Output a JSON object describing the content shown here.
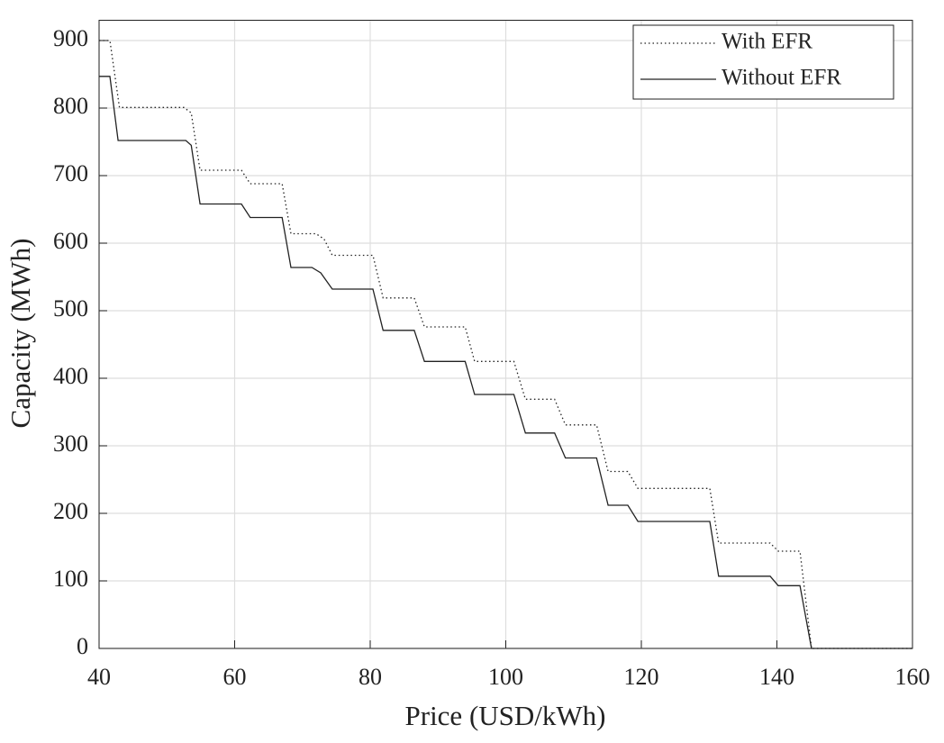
{
  "chart_data": {
    "type": "line",
    "xlabel": "Price (USD/kWh)",
    "ylabel": "Capacity (MWh)",
    "xlim": [
      40,
      160
    ],
    "ylim": [
      0,
      930
    ],
    "xticks": [
      40,
      60,
      80,
      100,
      120,
      140,
      160
    ],
    "yticks": [
      0,
      100,
      200,
      300,
      400,
      500,
      600,
      700,
      800,
      900
    ],
    "grid": true,
    "legend": "upper right",
    "series": [
      {
        "name": "With EFR",
        "color": "#222222",
        "dash": "dotted",
        "x": [
          40,
          41.6,
          43,
          52.5,
          53.6,
          54.9,
          61,
          62.3,
          67,
          68.3,
          72,
          73.2,
          74.4,
          80.4,
          81.9,
          86.5,
          88,
          94,
          95.4,
          101.2,
          102.9,
          107.2,
          108.8,
          113.4,
          115.1,
          118,
          119.5,
          130.1,
          131.4,
          139,
          140.2,
          143.4,
          145.1,
          160
        ],
        "values": [
          900,
          900,
          801,
          801,
          793,
          708,
          708,
          688,
          688,
          614,
          614,
          606,
          582,
          582,
          519,
          519,
          476,
          476,
          425,
          425,
          369,
          369,
          331,
          331,
          262,
          262,
          237,
          237,
          156,
          156,
          144,
          144,
          0,
          0
        ]
      },
      {
        "name": "Without EFR",
        "color": "#222222",
        "dash": "solid",
        "x": [
          40,
          41.6,
          42.8,
          52.8,
          53.6,
          54.9,
          61,
          62.3,
          67,
          68.3,
          71.4,
          72.7,
          74.4,
          80.4,
          81.9,
          86.5,
          88,
          94,
          95.4,
          101.2,
          102.9,
          107.2,
          108.8,
          113.4,
          115.1,
          118,
          119.5,
          130.1,
          131.4,
          139,
          140.2,
          143.4,
          145.1,
          160
        ],
        "values": [
          847,
          847,
          752,
          752,
          745,
          658,
          658,
          638,
          638,
          564,
          564,
          556,
          532,
          532,
          471,
          471,
          425,
          425,
          376,
          376,
          319,
          319,
          282,
          282,
          212,
          212,
          188,
          188,
          107,
          107,
          93,
          93,
          0,
          0
        ]
      }
    ]
  }
}
